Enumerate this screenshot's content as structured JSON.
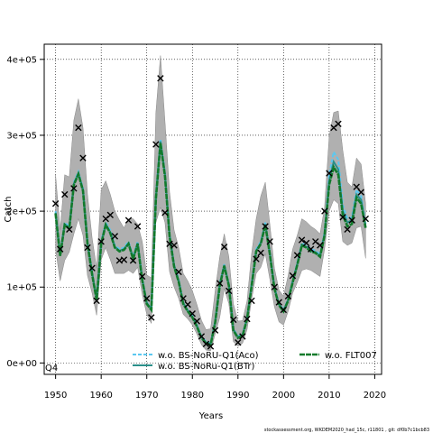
{
  "chart_data": {
    "type": "line",
    "xlabel": "Years",
    "ylabel": "Catch",
    "xlim": [
      1947.5,
      2021.5
    ],
    "ylim": [
      -15000,
      420000
    ],
    "x_ticks": [
      1950,
      1960,
      1970,
      1980,
      1990,
      2000,
      2010,
      2020
    ],
    "y_ticks": [
      0,
      100000,
      200000,
      300000,
      400000
    ],
    "y_tick_labels": [
      "0e+00",
      "1e+05",
      "2e+05",
      "3e+05",
      "4e+05"
    ],
    "grid": true,
    "corner_label": "Q4",
    "legend_position": "bottom",
    "footer": "stockassessment.org, WKDEM2020_had_15c, r11801 , git: df0b7c1bcb83",
    "years": [
      1950,
      1951,
      1952,
      1953,
      1954,
      1955,
      1956,
      1957,
      1958,
      1959,
      1960,
      1961,
      1962,
      1963,
      1964,
      1965,
      1966,
      1967,
      1968,
      1969,
      1970,
      1971,
      1972,
      1973,
      1974,
      1975,
      1976,
      1977,
      1978,
      1979,
      1980,
      1981,
      1982,
      1983,
      1984,
      1985,
      1986,
      1987,
      1988,
      1989,
      1990,
      1991,
      1992,
      1993,
      1994,
      1995,
      1996,
      1997,
      1998,
      1999,
      2000,
      2001,
      2002,
      2003,
      2004,
      2005,
      2006,
      2007,
      2008,
      2009,
      2010,
      2011,
      2012,
      2013,
      2014,
      2015,
      2016,
      2017,
      2018
    ],
    "observed": [
      210000,
      150000,
      222000,
      176000,
      230000,
      310000,
      270000,
      152000,
      125000,
      82000,
      160000,
      190000,
      195000,
      167000,
      135000,
      136000,
      188000,
      135000,
      180000,
      114000,
      85000,
      60000,
      288000,
      375000,
      198000,
      157000,
      155000,
      120000,
      85000,
      77000,
      65000,
      55000,
      35000,
      25000,
      22000,
      43000,
      105000,
      153000,
      95000,
      57000,
      27000,
      35000,
      58000,
      82000,
      137000,
      145000,
      180000,
      160000,
      100000,
      80000,
      70000,
      88000,
      115000,
      142000,
      162000,
      158000,
      150000,
      160000,
      155000,
      200000,
      250000,
      310000,
      315000,
      192000,
      176000,
      188000,
      232000,
      225000,
      190000
    ],
    "band_upper": [
      248000,
      175000,
      248000,
      245000,
      320000,
      348000,
      310000,
      222000,
      165000,
      125000,
      228000,
      240000,
      222000,
      200000,
      188000,
      178000,
      190000,
      190000,
      183000,
      160000,
      116000,
      112000,
      330000,
      405000,
      318000,
      225000,
      175000,
      152000,
      118000,
      108000,
      95000,
      77000,
      56000,
      44000,
      45000,
      95000,
      140000,
      170000,
      140000,
      78000,
      55000,
      56000,
      82000,
      145000,
      190000,
      220000,
      238000,
      182000,
      125000,
      96000,
      88000,
      115000,
      150000,
      168000,
      190000,
      186000,
      180000,
      176000,
      170000,
      205000,
      298000,
      330000,
      332000,
      280000,
      238000,
      232000,
      270000,
      262000,
      210000
    ],
    "band_lower": [
      150000,
      108000,
      135000,
      146000,
      170000,
      190000,
      168000,
      115000,
      92000,
      63000,
      136000,
      152000,
      136000,
      118000,
      118000,
      118000,
      122000,
      118000,
      126000,
      90000,
      64000,
      52000,
      185000,
      205000,
      185000,
      120000,
      100000,
      85000,
      64000,
      58000,
      50000,
      38000,
      24000,
      17000,
      16000,
      38000,
      60000,
      98000,
      78000,
      28000,
      22000,
      26000,
      44000,
      84000,
      118000,
      126000,
      144000,
      110000,
      74000,
      54000,
      50000,
      68000,
      92000,
      106000,
      122000,
      124000,
      122000,
      118000,
      114000,
      150000,
      200000,
      215000,
      210000,
      160000,
      155000,
      158000,
      178000,
      180000,
      138000
    ],
    "series": [
      {
        "name": "w.o. BS-NoRU-Q1(Aco)",
        "color": "#5bc8f0",
        "dash": "dashed",
        "values": [
          200000,
          144000,
          185000,
          180000,
          238000,
          252000,
          230000,
          160000,
          120000,
          85000,
          160000,
          185000,
          175000,
          155000,
          150000,
          152000,
          160000,
          140000,
          160000,
          112000,
          80000,
          72000,
          220000,
          295000,
          250000,
          170000,
          130000,
          110000,
          80000,
          70000,
          62000,
          50000,
          35000,
          28000,
          26000,
          55000,
          105000,
          130000,
          104000,
          45000,
          35000,
          38000,
          60000,
          105000,
          150000,
          160000,
          185000,
          146000,
          100000,
          78000,
          70000,
          84000,
          108000,
          132000,
          158000,
          155000,
          150000,
          148000,
          143000,
          172000,
          248000,
          278000,
          268000,
          208000,
          190000,
          192000,
          228000,
          220000,
          183000
        ]
      },
      {
        "name": "w.o. BS-NoRu-Q1(BTr)",
        "color": "#2a8f8a",
        "dash": "solid",
        "values": [
          198000,
          142000,
          183000,
          178000,
          236000,
          250000,
          228000,
          158000,
          118000,
          84000,
          158000,
          183000,
          172000,
          153000,
          148000,
          150000,
          158000,
          138000,
          158000,
          110000,
          79000,
          71000,
          218000,
          292000,
          248000,
          168000,
          128000,
          108000,
          79000,
          69000,
          61000,
          49000,
          34000,
          27000,
          25000,
          54000,
          103000,
          129000,
          103000,
          44000,
          34000,
          37000,
          59000,
          103000,
          148000,
          158000,
          183000,
          144000,
          99000,
          77000,
          69000,
          83000,
          107000,
          130000,
          156000,
          153000,
          148000,
          146000,
          141000,
          170000,
          240000,
          265000,
          255000,
          200000,
          185000,
          188000,
          222000,
          215000,
          180000
        ]
      },
      {
        "name": "w.o. FLT007",
        "color": "#127a2c",
        "dash": "dashed",
        "values": [
          197000,
          141000,
          182000,
          177000,
          235000,
          249000,
          227000,
          157000,
          117000,
          83000,
          157000,
          182000,
          171000,
          152000,
          147000,
          149000,
          157000,
          137000,
          157000,
          109000,
          78000,
          70000,
          216000,
          290000,
          246000,
          167000,
          127000,
          107000,
          78000,
          68000,
          60000,
          48000,
          33000,
          26000,
          24000,
          53000,
          102000,
          128000,
          102000,
          43000,
          33000,
          36000,
          58000,
          102000,
          147000,
          157000,
          182000,
          143000,
          98000,
          76000,
          68000,
          82000,
          106000,
          129000,
          155000,
          152000,
          147000,
          145000,
          140000,
          168000,
          235000,
          258000,
          248000,
          195000,
          180000,
          183000,
          218000,
          210000,
          178000
        ]
      }
    ]
  }
}
